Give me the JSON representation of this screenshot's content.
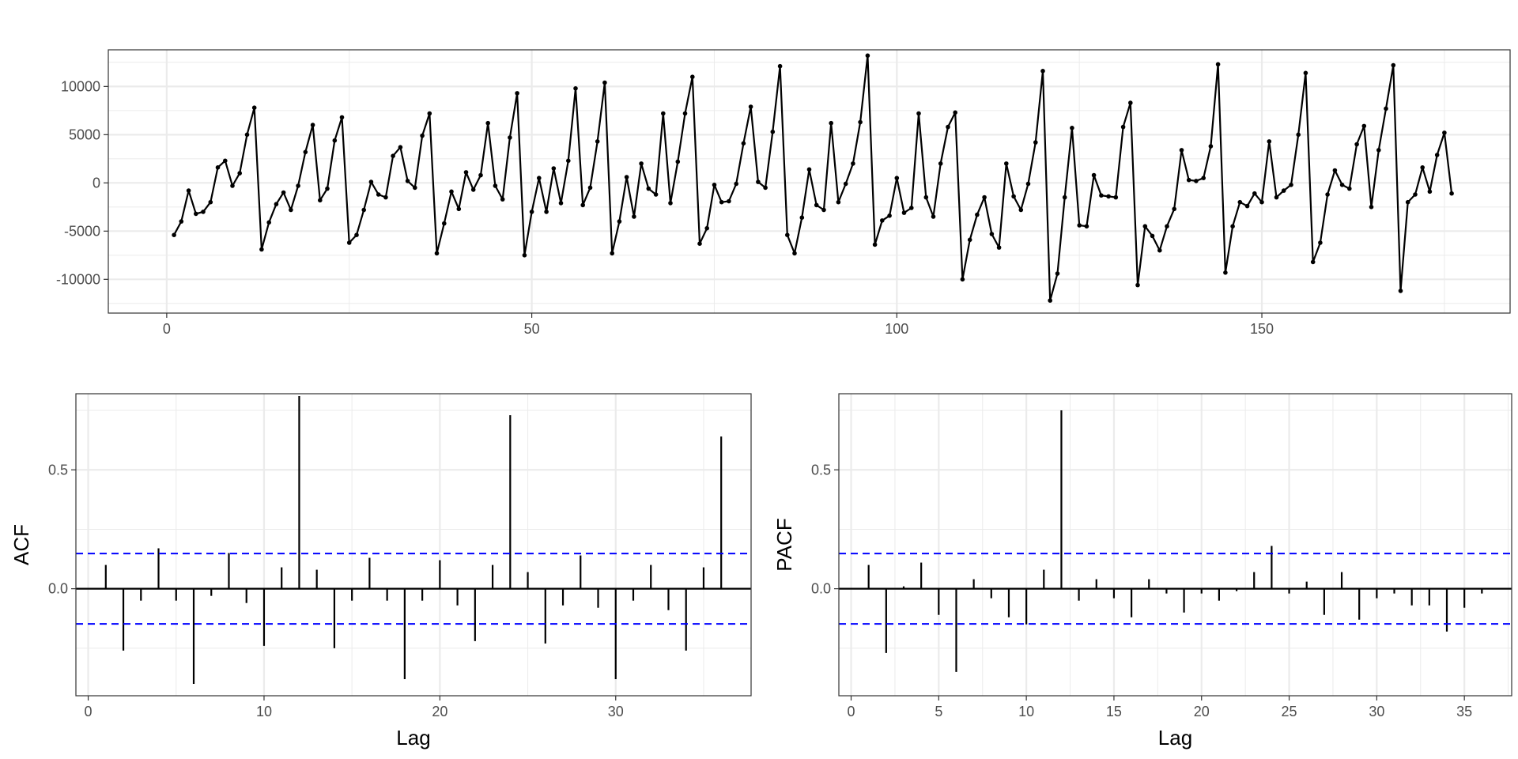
{
  "colors": {
    "series": "#000000",
    "confidence": "#0000ff",
    "grid": "#ebebeb",
    "frame": "#333333",
    "tick_text": "#4d4d4d"
  },
  "chart_data": [
    {
      "type": "line",
      "title": "",
      "xlabel": "",
      "ylabel": "",
      "markers": true,
      "grid": true,
      "xlim": [
        -8,
        184
      ],
      "ylim": [
        -13500,
        13800
      ],
      "x_ticks": [
        0,
        50,
        100,
        150
      ],
      "y_ticks": [
        -10000,
        -5000,
        0,
        5000,
        10000
      ],
      "x_tick_labels": [
        "0",
        "50",
        "100",
        "150"
      ],
      "y_tick_labels": [
        "-10000",
        "-5000",
        "0",
        "5000",
        "10000"
      ],
      "x": [
        1,
        2,
        3,
        4,
        5,
        6,
        7,
        8,
        9,
        10,
        11,
        12,
        13,
        14,
        15,
        16,
        17,
        18,
        19,
        20,
        21,
        22,
        23,
        24,
        25,
        26,
        27,
        28,
        29,
        30,
        31,
        32,
        33,
        34,
        35,
        36,
        37,
        38,
        39,
        40,
        41,
        42,
        43,
        44,
        45,
        46,
        47,
        48,
        49,
        50,
        51,
        52,
        53,
        54,
        55,
        56,
        57,
        58,
        59,
        60,
        61,
        62,
        63,
        64,
        65,
        66,
        67,
        68,
        69,
        70,
        71,
        72,
        73,
        74,
        75,
        76,
        77,
        78,
        79,
        80,
        81,
        82,
        83,
        84,
        85,
        86,
        87,
        88,
        89,
        90,
        91,
        92,
        93,
        94,
        95,
        96,
        97,
        98,
        99,
        100,
        101,
        102,
        103,
        104,
        105,
        106,
        107,
        108,
        109,
        110,
        111,
        112,
        113,
        114,
        115,
        116,
        117,
        118,
        119,
        120,
        121,
        122,
        123,
        124,
        125,
        126,
        127,
        128,
        129,
        130,
        131,
        132,
        133,
        134,
        135,
        136,
        137,
        138,
        139,
        140,
        141,
        142,
        143,
        144,
        145,
        146,
        147,
        148,
        149,
        150,
        151,
        152,
        153,
        154,
        155,
        156,
        157,
        158,
        159,
        160,
        161,
        162,
        163,
        164,
        165,
        166,
        167,
        168,
        169,
        170,
        171,
        172,
        173,
        174,
        175,
        176
      ],
      "values": [
        -5400,
        -4000,
        -800,
        -3200,
        -3000,
        -2000,
        1600,
        2300,
        -300,
        1000,
        5000,
        7800,
        -6900,
        -4100,
        -2200,
        -1000,
        -2800,
        -300,
        3200,
        6000,
        -1800,
        -600,
        4400,
        6800,
        -6200,
        -5400,
        -2800,
        100,
        -1200,
        -1500,
        2800,
        3700,
        200,
        -500,
        4900,
        7200,
        -7300,
        -4200,
        -900,
        -2700,
        1100,
        -700,
        800,
        6200,
        -300,
        -1700,
        4700,
        9300,
        -7500,
        -3000,
        500,
        -3000,
        1500,
        -2100,
        2300,
        9800,
        -2300,
        -500,
        4300,
        10400,
        -7300,
        -4000,
        600,
        -3500,
        2000,
        -600,
        -1200,
        7200,
        -2100,
        2200,
        7200,
        11000,
        -6300,
        -4700,
        -200,
        -2000,
        -1900,
        -100,
        4100,
        7900,
        100,
        -500,
        5300,
        12100,
        -5400,
        -7300,
        -3600,
        1400,
        -2300,
        -2800,
        6200,
        -2000,
        -100,
        2000,
        6300,
        13200,
        -6400,
        -3900,
        -3400,
        500,
        -3100,
        -2600,
        7200,
        -1500,
        -3500,
        2000,
        5800,
        7300,
        -10000,
        -5900,
        -3300,
        -1500,
        -5300,
        -6700,
        2000,
        -1400,
        -2800,
        -100,
        4200,
        11600,
        -12200,
        -9400,
        -1500,
        5700,
        -4400,
        -4500,
        800,
        -1300,
        -1400,
        -1500,
        5800,
        8300,
        -10600,
        -4500,
        -5500,
        -7000,
        -4500,
        -2700,
        3400,
        300,
        200,
        500,
        3800,
        12300,
        -9300,
        -4500,
        -2000,
        -2400,
        -1100,
        -2000,
        4300,
        -1500,
        -800,
        -200,
        5000,
        11400,
        -8200,
        -6200,
        -1200,
        1300,
        -200,
        -600,
        4000,
        5900,
        -2500,
        3400,
        7700,
        12200,
        -11200,
        -2000,
        -1200,
        1600,
        -900,
        2900,
        5200,
        -1100
      ]
    },
    {
      "type": "bar",
      "subtype": "acf",
      "title": "",
      "xlabel": "Lag",
      "ylabel": "ACF",
      "grid": true,
      "xlim": [
        -0.7,
        37.7
      ],
      "ylim": [
        -0.45,
        0.82
      ],
      "x_ticks": [
        0,
        10,
        20,
        30
      ],
      "y_ticks": [
        0.0,
        0.5
      ],
      "x_tick_labels": [
        "0",
        "10",
        "20",
        "30"
      ],
      "y_tick_labels": [
        "0.0",
        "0.5"
      ],
      "confidence_bound": 0.148,
      "lags": [
        1,
        2,
        3,
        4,
        5,
        6,
        7,
        8,
        9,
        10,
        11,
        12,
        13,
        14,
        15,
        16,
        17,
        18,
        19,
        20,
        21,
        22,
        23,
        24,
        25,
        26,
        27,
        28,
        29,
        30,
        31,
        32,
        33,
        34,
        35,
        36
      ],
      "values": [
        0.1,
        -0.26,
        -0.05,
        0.17,
        -0.05,
        -0.4,
        -0.03,
        0.15,
        -0.06,
        -0.24,
        0.09,
        0.81,
        0.08,
        -0.25,
        -0.05,
        0.13,
        -0.05,
        -0.38,
        -0.05,
        0.12,
        -0.07,
        -0.22,
        0.1,
        0.73,
        0.07,
        -0.23,
        -0.07,
        0.14,
        -0.08,
        -0.38,
        -0.05,
        0.1,
        -0.09,
        -0.26,
        0.09,
        0.64
      ]
    },
    {
      "type": "bar",
      "subtype": "pacf",
      "title": "",
      "xlabel": "Lag",
      "ylabel": "PACF",
      "grid": true,
      "xlim": [
        -0.7,
        37.7
      ],
      "ylim": [
        -0.45,
        0.82
      ],
      "x_ticks": [
        0,
        5,
        10,
        15,
        20,
        25,
        30,
        35
      ],
      "y_ticks": [
        0.0,
        0.5
      ],
      "x_tick_labels": [
        "0",
        "5",
        "10",
        "15",
        "20",
        "25",
        "30",
        "35"
      ],
      "y_tick_labels": [
        "0.0",
        "0.5"
      ],
      "confidence_bound": 0.148,
      "lags": [
        1,
        2,
        3,
        4,
        5,
        6,
        7,
        8,
        9,
        10,
        11,
        12,
        13,
        14,
        15,
        16,
        17,
        18,
        19,
        20,
        21,
        22,
        23,
        24,
        25,
        26,
        27,
        28,
        29,
        30,
        31,
        32,
        33,
        34,
        35,
        36
      ],
      "values": [
        0.1,
        -0.27,
        0.01,
        0.11,
        -0.11,
        -0.35,
        0.04,
        -0.04,
        -0.12,
        -0.15,
        0.08,
        0.75,
        -0.05,
        0.04,
        -0.04,
        -0.12,
        0.04,
        -0.02,
        -0.1,
        -0.02,
        -0.05,
        -0.01,
        0.07,
        0.18,
        -0.02,
        0.03,
        -0.11,
        0.07,
        -0.13,
        -0.04,
        -0.02,
        -0.07,
        -0.07,
        -0.18,
        -0.08,
        -0.02
      ]
    }
  ]
}
